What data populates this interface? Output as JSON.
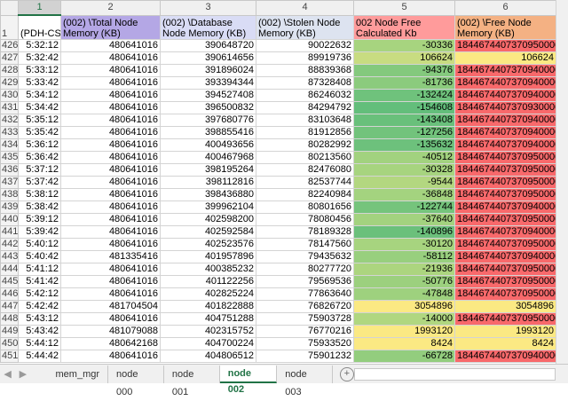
{
  "column_headers": [
    1,
    2,
    3,
    4,
    5,
    6
  ],
  "header_row": {
    "row_number": 1,
    "cells": [
      "(PDH-CSV",
      "(002) \\Total Node Memory (KB)",
      "(002) \\Database Node Memory (KB)",
      "(002) \\Stolen Node Memory (KB)",
      "002 Node Free Calculated Kb",
      "(002) \\Free Node Memory (KB)"
    ]
  },
  "rows": [
    {
      "row_number": 426,
      "cells": [
        "5:32:12",
        480641016,
        390648720,
        90022632,
        -30336,
        18446744073709500000
      ]
    },
    {
      "row_number": 427,
      "cells": [
        "5:32:42",
        480641016,
        390614656,
        89919736,
        106624,
        106624
      ]
    },
    {
      "row_number": 428,
      "cells": [
        "5:33:12",
        480641016,
        391896024,
        88839368,
        -94376,
        18446744073709400000
      ]
    },
    {
      "row_number": 429,
      "cells": [
        "5:33:42",
        480641016,
        393394344,
        87328408,
        -81736,
        18446744073709400000
      ]
    },
    {
      "row_number": 430,
      "cells": [
        "5:34:12",
        480641016,
        394527408,
        86246032,
        -132424,
        18446744073709400000
      ]
    },
    {
      "row_number": 431,
      "cells": [
        "5:34:42",
        480641016,
        396500832,
        84294792,
        -154608,
        18446744073709300000
      ]
    },
    {
      "row_number": 432,
      "cells": [
        "5:35:12",
        480641016,
        397680776,
        83103648,
        -143408,
        18446744073709400000
      ]
    },
    {
      "row_number": 433,
      "cells": [
        "5:35:42",
        480641016,
        398855416,
        81912856,
        -127256,
        18446744073709400000
      ]
    },
    {
      "row_number": 434,
      "cells": [
        "5:36:12",
        480641016,
        400493656,
        80282992,
        -135632,
        18446744073709400000
      ]
    },
    {
      "row_number": 435,
      "cells": [
        "5:36:42",
        480641016,
        400467968,
        80213560,
        -40512,
        18446744073709500000
      ]
    },
    {
      "row_number": 436,
      "cells": [
        "5:37:12",
        480641016,
        398195264,
        82476080,
        -30328,
        18446744073709500000
      ]
    },
    {
      "row_number": 437,
      "cells": [
        "5:37:42",
        480641016,
        398112816,
        82537744,
        -9544,
        18446744073709500000
      ]
    },
    {
      "row_number": 438,
      "cells": [
        "5:38:12",
        480641016,
        398436880,
        82240984,
        -36848,
        18446744073709500000
      ]
    },
    {
      "row_number": 439,
      "cells": [
        "5:38:42",
        480641016,
        399962104,
        80801656,
        -122744,
        18446744073709400000
      ]
    },
    {
      "row_number": 440,
      "cells": [
        "5:39:12",
        480641016,
        402598200,
        78080456,
        -37640,
        18446744073709500000
      ]
    },
    {
      "row_number": 441,
      "cells": [
        "5:39:42",
        480641016,
        402592584,
        78189328,
        -140896,
        18446744073709400000
      ]
    },
    {
      "row_number": 442,
      "cells": [
        "5:40:12",
        480641016,
        402523576,
        78147560,
        -30120,
        18446744073709500000
      ]
    },
    {
      "row_number": 443,
      "cells": [
        "5:40:42",
        481335416,
        401957896,
        79435632,
        -58112,
        18446744073709400000
      ]
    },
    {
      "row_number": 444,
      "cells": [
        "5:41:12",
        480641016,
        400385232,
        80277720,
        -21936,
        18446744073709500000
      ]
    },
    {
      "row_number": 445,
      "cells": [
        "5:41:42",
        480641016,
        401122256,
        79569536,
        -50776,
        18446744073709500000
      ]
    },
    {
      "row_number": 446,
      "cells": [
        "5:42:12",
        480641016,
        402825224,
        77863640,
        -47848,
        18446744073709500000
      ]
    },
    {
      "row_number": 447,
      "cells": [
        "5:42:42",
        481704504,
        401822888,
        76826720,
        3054896,
        3054896
      ]
    },
    {
      "row_number": 448,
      "cells": [
        "5:43:12",
        480641016,
        404751288,
        75903728,
        -14000,
        18446744073709500000
      ]
    },
    {
      "row_number": 449,
      "cells": [
        "5:43:42",
        481079088,
        402315752,
        76770216,
        1993120,
        1993120
      ]
    },
    {
      "row_number": 450,
      "cells": [
        "5:44:12",
        480642168,
        404700224,
        75933520,
        8424,
        8424
      ]
    },
    {
      "row_number": 451,
      "cells": [
        "5:44:42",
        480641016,
        404806512,
        75901232,
        -66728,
        18446744073709400000
      ]
    }
  ],
  "tabs": [
    {
      "label": "mem_mgr",
      "active": false
    },
    {
      "label": "node 000",
      "active": false
    },
    {
      "label": "node 001",
      "active": false
    },
    {
      "label": "node 002",
      "active": true
    },
    {
      "label": "node 003",
      "active": false
    }
  ]
}
